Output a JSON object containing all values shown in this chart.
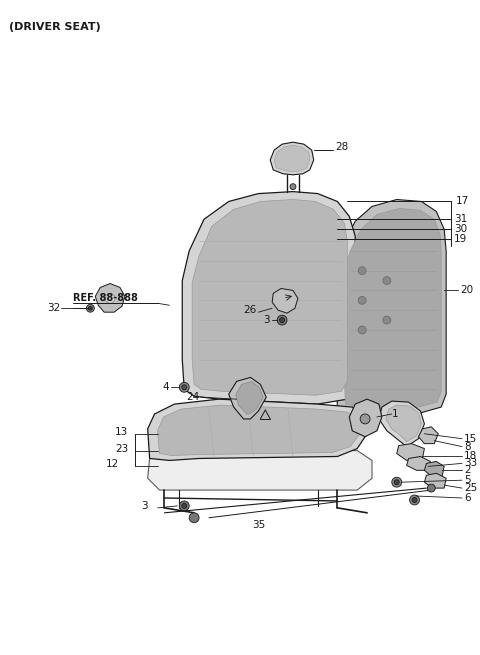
{
  "title": "(DRIVER SEAT)",
  "background_color": "#ffffff",
  "line_color": "#1a1a1a",
  "fig_width": 4.8,
  "fig_height": 6.55,
  "dpi": 100,
  "ref_text": "REF. 88-888",
  "seat_gray_light": "#d4d4d4",
  "seat_gray_mid": "#c0c0c0",
  "seat_gray_dark": "#a8a8a8",
  "seat_gray_inner": "#b8b8b8"
}
